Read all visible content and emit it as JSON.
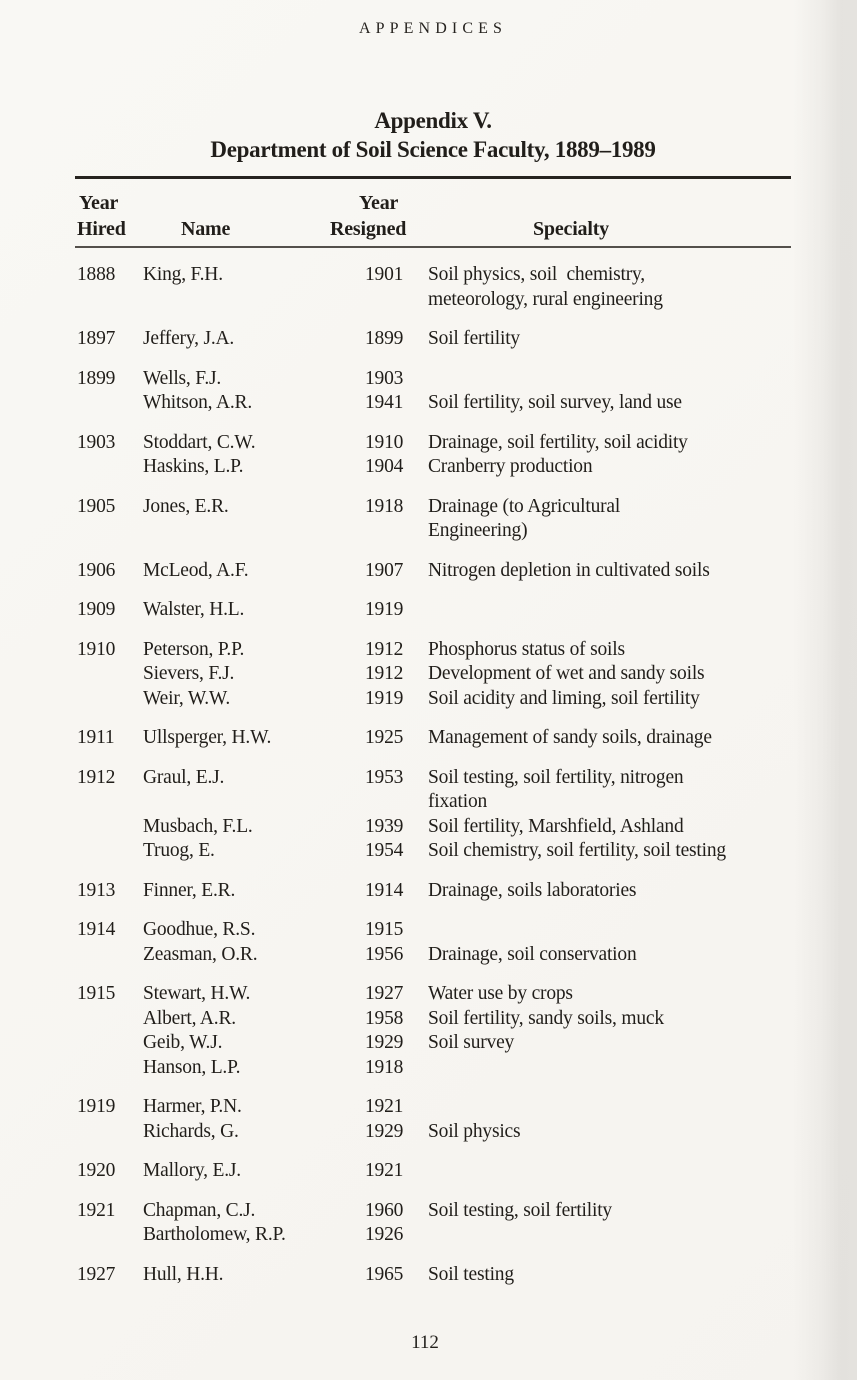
{
  "page": {
    "running_head": "APPENDICES",
    "title_line1": "Appendix V.",
    "title_line2": "Department of Soil Science Faculty, 1889–1989",
    "page_number": "112",
    "paper_color": "#f8f6f2",
    "text_color": "#211e1a"
  },
  "table": {
    "header": {
      "hired_line1": "Year",
      "hired_line2": "Hired",
      "name": "Name",
      "resigned_line1": "Year",
      "resigned_line2": "Resigned",
      "specialty": "Specialty"
    },
    "groups": [
      {
        "hired": "1888",
        "members": [
          {
            "name": "King, F.H.",
            "resigned": "1901",
            "specialty": "Soil physics, soil  chemistry,\nmeteorology, rural engineering"
          }
        ]
      },
      {
        "hired": "1897",
        "members": [
          {
            "name": "Jeffery, J.A.",
            "resigned": "1899",
            "specialty": "Soil fertility"
          }
        ]
      },
      {
        "hired": "1899",
        "members": [
          {
            "name": "Wells, F.J.",
            "resigned": "1903",
            "specialty": ""
          },
          {
            "name": "Whitson, A.R.",
            "resigned": "1941",
            "specialty": "Soil fertility, soil survey, land use"
          }
        ]
      },
      {
        "hired": "1903",
        "members": [
          {
            "name": "Stoddart, C.W.",
            "resigned": "1910",
            "specialty": "Drainage, soil fertility, soil acidity"
          },
          {
            "name": "Haskins, L.P.",
            "resigned": "1904",
            "specialty": "Cranberry production"
          }
        ]
      },
      {
        "hired": "1905",
        "members": [
          {
            "name": "Jones, E.R.",
            "resigned": "1918",
            "specialty": "Drainage (to Agricultural\nEngineering)"
          }
        ]
      },
      {
        "hired": "1906",
        "members": [
          {
            "name": "McLeod, A.F.",
            "resigned": "1907",
            "specialty": "Nitrogen depletion in cultivated soils"
          }
        ]
      },
      {
        "hired": "1909",
        "members": [
          {
            "name": "Walster, H.L.",
            "resigned": "1919",
            "specialty": ""
          }
        ]
      },
      {
        "hired": "1910",
        "members": [
          {
            "name": "Peterson, P.P.",
            "resigned": "1912",
            "specialty": "Phosphorus status of soils"
          },
          {
            "name": "Sievers, F.J.",
            "resigned": "1912",
            "specialty": "Development of wet and sandy soils"
          },
          {
            "name": "Weir, W.W.",
            "resigned": "1919",
            "specialty": "Soil acidity and liming, soil fertility"
          }
        ]
      },
      {
        "hired": "1911",
        "members": [
          {
            "name": "Ullsperger, H.W.",
            "resigned": "1925",
            "specialty": "Management of sandy soils, drainage"
          }
        ]
      },
      {
        "hired": "1912",
        "members": [
          {
            "name": "Graul, E.J.",
            "resigned": "1953",
            "specialty": "Soil testing, soil fertility, nitrogen\nfixation"
          },
          {
            "name": "Musbach, F.L.",
            "resigned": "1939",
            "specialty": "Soil fertility, Marshfield, Ashland"
          },
          {
            "name": "Truog, E.",
            "resigned": "1954",
            "specialty": "Soil chemistry, soil fertility, soil testing"
          }
        ]
      },
      {
        "hired": "1913",
        "members": [
          {
            "name": "Finner, E.R.",
            "resigned": "1914",
            "specialty": "Drainage, soils laboratories"
          }
        ]
      },
      {
        "hired": "1914",
        "members": [
          {
            "name": "Goodhue, R.S.",
            "resigned": "1915",
            "specialty": ""
          },
          {
            "name": "Zeasman, O.R.",
            "resigned": "1956",
            "specialty": "Drainage, soil conservation"
          }
        ]
      },
      {
        "hired": "1915",
        "members": [
          {
            "name": "Stewart, H.W.",
            "resigned": "1927",
            "specialty": "Water use by crops"
          },
          {
            "name": "Albert, A.R.",
            "resigned": "1958",
            "specialty": "Soil fertility, sandy soils, muck"
          },
          {
            "name": "Geib, W.J.",
            "resigned": "1929",
            "specialty": "Soil survey"
          },
          {
            "name": "Hanson, L.P.",
            "resigned": "1918",
            "specialty": ""
          }
        ]
      },
      {
        "hired": "1919",
        "members": [
          {
            "name": "Harmer, P.N.",
            "resigned": "1921",
            "specialty": ""
          },
          {
            "name": "Richards, G.",
            "resigned": "1929",
            "specialty": "Soil physics"
          }
        ]
      },
      {
        "hired": "1920",
        "members": [
          {
            "name": "Mallory, E.J.",
            "resigned": "1921",
            "specialty": ""
          }
        ]
      },
      {
        "hired": "1921",
        "members": [
          {
            "name": "Chapman, C.J.",
            "resigned": "1960",
            "specialty": "Soil testing, soil fertility"
          },
          {
            "name": "Bartholomew, R.P.",
            "resigned": "1926",
            "specialty": ""
          }
        ]
      },
      {
        "hired": "1927",
        "members": [
          {
            "name": "Hull, H.H.",
            "resigned": "1965",
            "specialty": "Soil testing"
          }
        ]
      }
    ]
  }
}
